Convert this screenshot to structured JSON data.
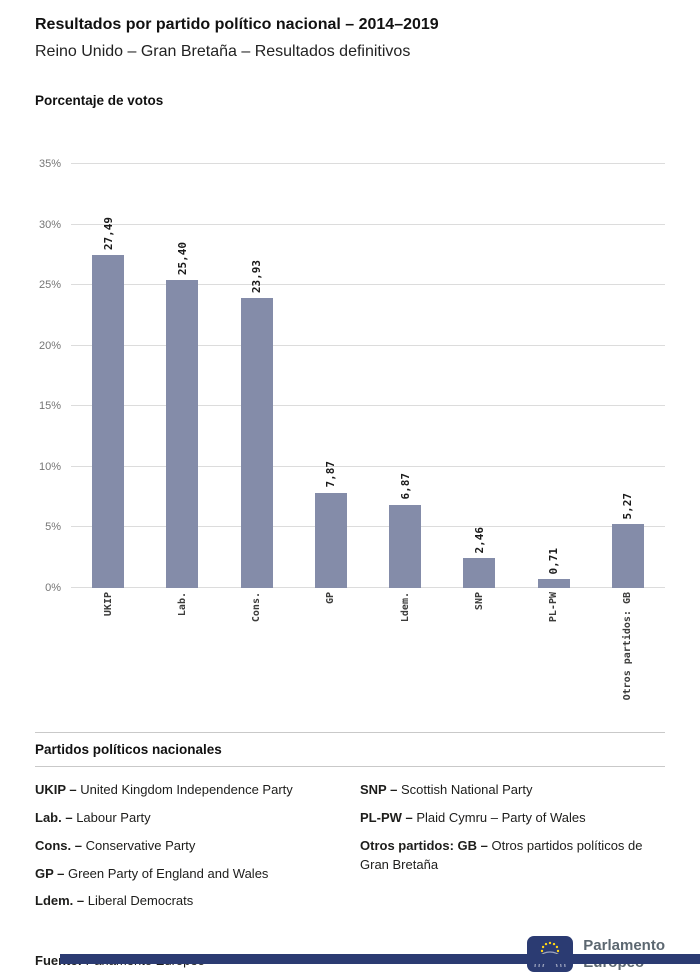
{
  "header": {
    "title": "Resultados por partido político nacional – 2014–2019",
    "subtitle": "Reino Unido – Gran Bretaña – Resultados definitivos"
  },
  "chart_data": {
    "type": "bar",
    "title": "Porcentaje de votos",
    "categories": [
      "UKIP",
      "Lab.",
      "Cons.",
      "GP",
      "Ldem.",
      "SNP",
      "PL-PW",
      "Otros partidos: GB"
    ],
    "values": [
      27.49,
      25.4,
      23.93,
      7.87,
      6.87,
      2.46,
      0.71,
      5.27
    ],
    "value_labels": [
      "27,49",
      "25,40",
      "23,93",
      "7,87",
      "6,87",
      "2,46",
      "0,71",
      "5,27"
    ],
    "xlabel": "",
    "ylabel": "Porcentaje de votos",
    "ylim": [
      0,
      35
    ],
    "ytick_step": 5,
    "ytick_labels": [
      "0%",
      "5%",
      "10%",
      "15%",
      "20%",
      "25%",
      "30%",
      "35%"
    ],
    "grid": true,
    "legend_position": "none",
    "bar_color": "#848CA9"
  },
  "legend": {
    "heading": "Partidos políticos nacionales",
    "columns": [
      [
        {
          "term": "UKIP –",
          "text": "United Kingdom Independence Party"
        },
        {
          "term": "Lab. –",
          "text": "Labour Party"
        },
        {
          "term": "Cons. –",
          "text": "Conservative Party"
        },
        {
          "term": "GP –",
          "text": "Green Party of England and Wales"
        },
        {
          "term": "Ldem. –",
          "text": "Liberal Democrats"
        }
      ],
      [
        {
          "term": "SNP –",
          "text": "Scottish National Party"
        },
        {
          "term": "PL-PW –",
          "text": "Plaid Cymru – Party of Wales"
        },
        {
          "term": "Otros partidos: GB –",
          "text": "Otros partidos políticos de Gran Bretaña"
        }
      ]
    ]
  },
  "footer": {
    "source_label": "Fuente:",
    "source_text": "Parlamento Europeo",
    "logo_line1": "Parlamento",
    "logo_line2": "Europeo"
  },
  "colors": {
    "accent_navy": "#2B3B72",
    "star_yellow": "#FFD617",
    "gridline": "#dcdcdc"
  }
}
